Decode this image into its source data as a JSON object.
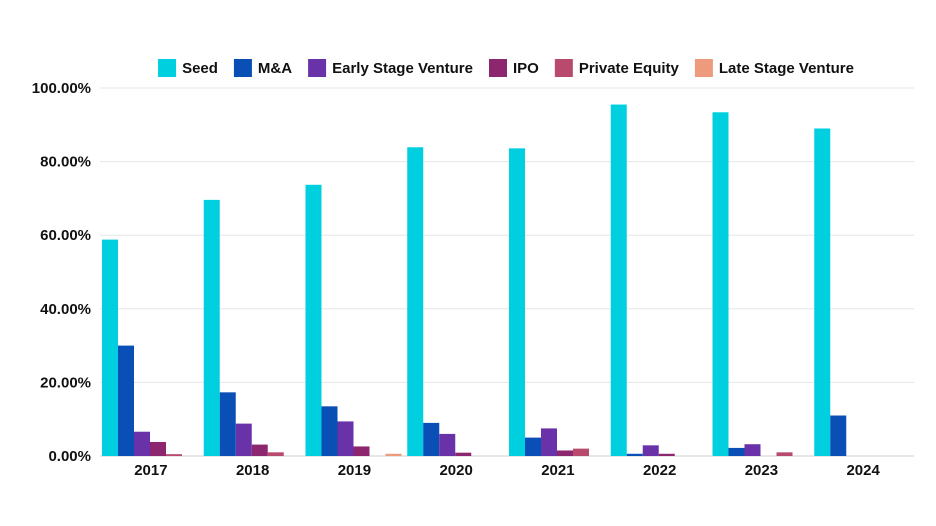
{
  "chart_data": {
    "type": "bar",
    "categories": [
      "2017",
      "2018",
      "2019",
      "2020",
      "2021",
      "2022",
      "2023",
      "2024"
    ],
    "series": [
      {
        "name": "Seed",
        "color": "#00cfe0",
        "values": [
          58.8,
          69.6,
          73.7,
          83.9,
          83.6,
          95.5,
          93.4,
          89.0
        ]
      },
      {
        "name": "M&A",
        "color": "#0a4fb5",
        "values": [
          30.0,
          17.3,
          13.5,
          9.0,
          5.0,
          0.6,
          2.2,
          11.0
        ]
      },
      {
        "name": "Early Stage Venture",
        "color": "#6a32a8",
        "values": [
          6.6,
          8.8,
          9.4,
          6.0,
          7.5,
          2.9,
          3.2,
          0
        ]
      },
      {
        "name": "IPO",
        "color": "#8c266e",
        "values": [
          3.8,
          3.1,
          2.6,
          0.9,
          1.5,
          0.6,
          0,
          0
        ]
      },
      {
        "name": "Private Equity",
        "color": "#b84a6e",
        "values": [
          0.5,
          1.0,
          0,
          0,
          2.0,
          0,
          1.0,
          0
        ]
      },
      {
        "name": "Late Stage Venture",
        "color": "#ee9a7c",
        "values": [
          0,
          0,
          0.6,
          0,
          0,
          0,
          0,
          0
        ]
      }
    ],
    "y_ticks": [
      "0.00%",
      "20.00%",
      "40.00%",
      "60.00%",
      "80.00%",
      "100.00%"
    ],
    "ylim": [
      0,
      100
    ],
    "grid": true,
    "legend_position": "top"
  }
}
